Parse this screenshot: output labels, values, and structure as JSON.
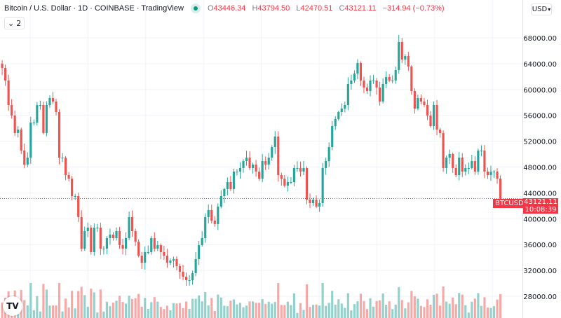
{
  "header": {
    "title": "Bitcoin / U.S. Dollar · 1D · COINBASE · TradingView",
    "status_color": "#089981",
    "open_label": "O",
    "open": "43446.34",
    "high_label": "H",
    "high": "43794.50",
    "low_label": "L",
    "low": "42470.51",
    "close_label": "C",
    "close": "43121.11",
    "change": "−314.94 (−0.73%)",
    "collapse_count": "2"
  },
  "currency_button": "USD",
  "last_price": {
    "symbol": "BTCUSD",
    "price": "43121.11",
    "countdown": "10:08:39",
    "color": "#f23645"
  },
  "logo": "TV",
  "chart_data": {
    "type": "candlestick",
    "interval": "1D",
    "ylim": [
      24640,
      73850
    ],
    "y_ticks": [
      "68000.00",
      "64000.00",
      "60000.00",
      "56000.00",
      "52000.00",
      "48000.00",
      "44000.00",
      "40000.00",
      "36000.00",
      "32000.00",
      "28000.00"
    ],
    "grid": true,
    "up_color": "#26a69a",
    "down_color": "#ef5350",
    "first_open": 64000,
    "closes": [
      63340,
      61390,
      57590,
      55970,
      53260,
      53800,
      50550,
      48380,
      49460,
      54880,
      54880,
      57590,
      57590,
      53260,
      57590,
      58680,
      58140,
      56510,
      49460,
      49460,
      46750,
      46210,
      43500,
      43500,
      40250,
      35370,
      38080,
      38620,
      34830,
      38620,
      38620,
      35370,
      35370,
      37000,
      37540,
      37000,
      38080,
      35910,
      35370,
      37000,
      40250,
      38080,
      36460,
      34290,
      33200,
      34830,
      34830,
      37000,
      35370,
      35910,
      34830,
      34290,
      33200,
      33530,
      33750,
      32660,
      31790,
      31040,
      30490,
      30490,
      31580,
      33750,
      35910,
      37000,
      40250,
      41330,
      39710,
      39170,
      41880,
      43500,
      44590,
      45670,
      44590,
      47300,
      47300,
      47840,
      48920,
      49460,
      47840,
      48380,
      47300,
      46210,
      48920,
      48380,
      49460,
      51090,
      52720,
      46750,
      46210,
      45130,
      45670,
      45670,
      47840,
      47840,
      47300,
      47840,
      42960,
      42420,
      42960,
      41880,
      42420,
      47840,
      48920,
      51090,
      54340,
      55430,
      56510,
      57050,
      57590,
      60850,
      61390,
      62470,
      64100,
      61390,
      60310,
      59760,
      61390,
      61390,
      60310,
      58140,
      60850,
      61930,
      61390,
      61390,
      63010,
      67350,
      64640,
      65180,
      63560,
      59760,
      57050,
      58680,
      58140,
      57590,
      55970,
      54340,
      57590,
      53800,
      53260,
      47840,
      49460,
      50010,
      47840,
      46750,
      49460,
      47300,
      47840,
      47840,
      48920,
      47300,
      50550,
      50550,
      47300,
      46750,
      47300,
      47300,
      46210,
      43121.11
    ]
  }
}
